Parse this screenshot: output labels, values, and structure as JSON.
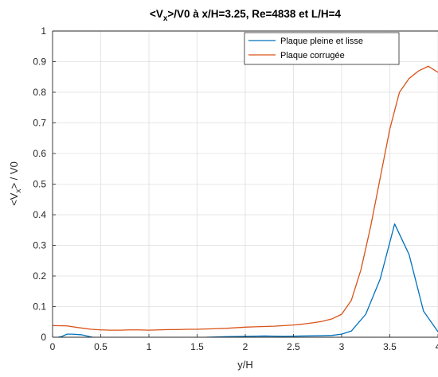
{
  "chart_data": {
    "type": "line",
    "title": {
      "prefix": "<V",
      "sub": "x",
      "suffix": ">/V0 à x/H=3.25, Re=4838 et L/H=4"
    },
    "xlabel": "y/H",
    "ylabel": {
      "prefix": "<V",
      "sub": "x",
      "suffix": "> / V0"
    },
    "xlim": [
      0,
      4
    ],
    "ylim": [
      0,
      1
    ],
    "xticks": [
      0,
      0.5,
      1,
      1.5,
      2,
      2.5,
      3,
      3.5,
      4
    ],
    "xtick_labels": [
      "0",
      "0.5",
      "1",
      "1.5",
      "2",
      "2.5",
      "3",
      "3.5",
      "4"
    ],
    "yticks": [
      0,
      0.1,
      0.2,
      0.3,
      0.4,
      0.5,
      0.6,
      0.7,
      0.8,
      0.9,
      1
    ],
    "ytick_labels": [
      "0",
      "0.1",
      "0.2",
      "0.3",
      "0.4",
      "0.5",
      "0.6",
      "0.7",
      "0.8",
      "0.9",
      "1"
    ],
    "grid": true,
    "legend_position": "top-right",
    "series": [
      {
        "name": "Plaque pleine et lisse",
        "color": "#0072BD",
        "x": [
          0.02,
          0.1,
          0.15,
          0.2,
          0.3,
          0.4,
          0.5,
          0.6,
          0.8,
          1.0,
          1.2,
          1.4,
          1.5,
          1.6,
          1.8,
          2.0,
          2.2,
          2.4,
          2.6,
          2.8,
          2.9,
          3.0,
          3.1,
          3.25,
          3.4,
          3.55,
          3.7,
          3.85,
          4.0
        ],
        "y": [
          -0.003,
          0.003,
          0.01,
          0.01,
          0.008,
          0.001,
          -0.005,
          -0.012,
          -0.02,
          -0.02,
          -0.015,
          -0.008,
          -0.004,
          0.0,
          0.002,
          0.003,
          0.004,
          0.003,
          0.004,
          0.005,
          0.006,
          0.01,
          0.02,
          0.075,
          0.19,
          0.37,
          0.27,
          0.085,
          0.018
        ]
      },
      {
        "name": "Plaque corrugée",
        "color": "#D95319",
        "x": [
          0.0,
          0.15,
          0.3,
          0.4,
          0.5,
          0.6,
          0.7,
          0.8,
          0.9,
          1.0,
          1.1,
          1.2,
          1.3,
          1.4,
          1.5,
          1.6,
          1.7,
          1.8,
          1.9,
          2.0,
          2.1,
          2.2,
          2.3,
          2.4,
          2.5,
          2.6,
          2.7,
          2.8,
          2.9,
          3.0,
          3.1,
          3.2,
          3.3,
          3.4,
          3.5,
          3.6,
          3.7,
          3.8,
          3.9,
          4.0
        ],
        "y": [
          0.038,
          0.037,
          0.03,
          0.026,
          0.024,
          0.023,
          0.023,
          0.024,
          0.024,
          0.023,
          0.024,
          0.025,
          0.025,
          0.026,
          0.026,
          0.027,
          0.028,
          0.029,
          0.031,
          0.033,
          0.034,
          0.035,
          0.036,
          0.038,
          0.04,
          0.043,
          0.047,
          0.052,
          0.06,
          0.075,
          0.12,
          0.22,
          0.36,
          0.52,
          0.68,
          0.8,
          0.845,
          0.87,
          0.885,
          0.865
        ]
      }
    ]
  }
}
